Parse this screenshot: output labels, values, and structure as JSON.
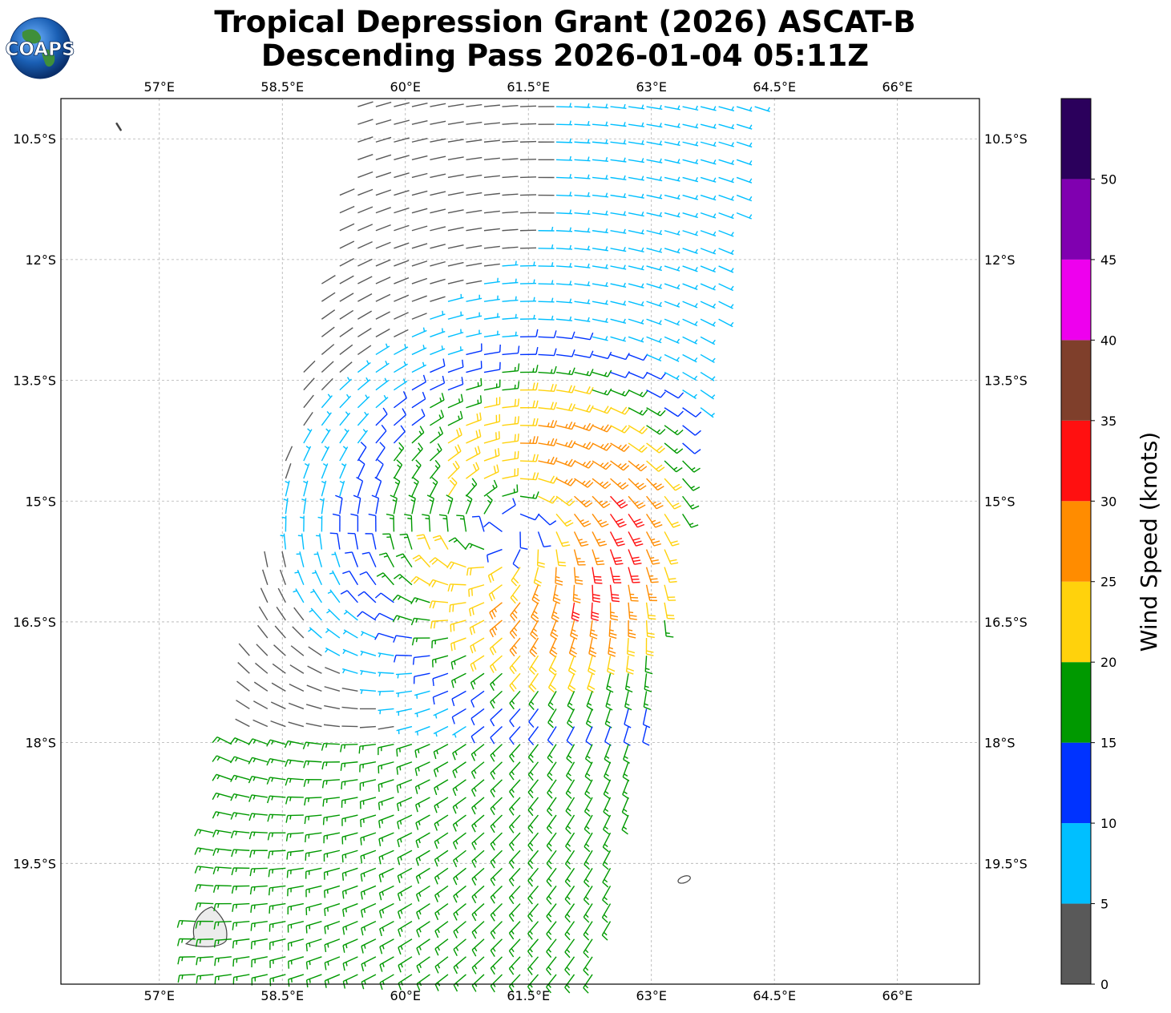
{
  "title": {
    "line1": "Tropical Depression Grant (2026) ASCAT-B",
    "line2": "Descending Pass 2026-01-04 05:11Z"
  },
  "logo": {
    "text": "COAPS",
    "icon": "globe-logo-icon"
  },
  "map": {
    "lon_range": [
      55.8,
      67.0
    ],
    "lat_range": [
      -21.0,
      -10.0
    ],
    "lon_ticks": [
      {
        "value": 57.0,
        "label": "57°E"
      },
      {
        "value": 58.5,
        "label": "58.5°E"
      },
      {
        "value": 60.0,
        "label": "60°E"
      },
      {
        "value": 61.5,
        "label": "61.5°E"
      },
      {
        "value": 63.0,
        "label": "63°E"
      },
      {
        "value": 64.5,
        "label": "64.5°E"
      },
      {
        "value": 66.0,
        "label": "66°E"
      }
    ],
    "lat_ticks": [
      {
        "value": -10.5,
        "label": "10.5°S"
      },
      {
        "value": -12.0,
        "label": "12°S"
      },
      {
        "value": -13.5,
        "label": "13.5°S"
      },
      {
        "value": -15.0,
        "label": "15°S"
      },
      {
        "value": -16.5,
        "label": "16.5°S"
      },
      {
        "value": -18.0,
        "label": "18°S"
      },
      {
        "value": -19.5,
        "label": "19.5°S"
      }
    ],
    "gridlines": true,
    "storm_center": {
      "lon": 61.3,
      "lat": -15.3
    },
    "swath_corners": {
      "top_left": {
        "lon": 59.4,
        "lat": -10.05
      },
      "top_right": {
        "lon": 64.3,
        "lat": -10.05
      },
      "bottom_left": {
        "lon": 57.3,
        "lat": -20.9
      },
      "bottom_right": {
        "lon": 62.4,
        "lat": -20.9
      }
    },
    "islands": [
      {
        "name": "Mauritius",
        "lon": 57.6,
        "lat": -20.3
      },
      {
        "name": "Tromelin",
        "lon": 56.5,
        "lat": -10.35
      },
      {
        "name": "Cargados",
        "lon": 63.4,
        "lat": -19.7
      }
    ]
  },
  "colorbar": {
    "label": "Wind Speed (knots)",
    "bounds": [
      0,
      5,
      10,
      15,
      20,
      25,
      30,
      35,
      40,
      45,
      50,
      55
    ],
    "tick_labels": [
      "0",
      "5",
      "10",
      "15",
      "20",
      "25",
      "30",
      "35",
      "40",
      "45",
      "50"
    ],
    "colors": [
      "#595959",
      "#00bfff",
      "#0033ff",
      "#009900",
      "#ffd20c",
      "#ff8c00",
      "#ff1010",
      "#7f3f2b",
      "#ee00ee",
      "#8000b0",
      "#2b005c"
    ]
  },
  "chart_data": {
    "type": "wind_barbs",
    "title": "Tropical Depression Grant (2026) ASCAT-B Descending Pass 2026-01-04 05:11Z",
    "xlabel": "",
    "ylabel": "",
    "xlim": [
      55.8,
      67.0
    ],
    "ylim": [
      -21.0,
      -10.0
    ],
    "units": "knots",
    "center": {
      "lon": 61.3,
      "lat": -15.3
    },
    "max_wind_kt": 32,
    "notes": "ASCAT-B wind barbs inside a tilted satellite swath; cyclonic (clockwise) circulation centered near 61.3°E 15.3°S with strongest winds (25-32 kt) southeast of the center."
  }
}
